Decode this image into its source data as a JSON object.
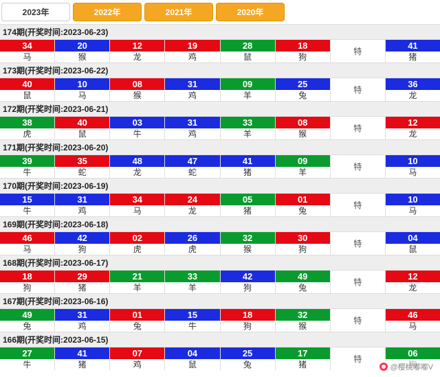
{
  "colors": {
    "red": "#e50914",
    "blue": "#1a2be0",
    "green": "#0a9b2e",
    "orange": "#f5a623"
  },
  "tabs": [
    {
      "label": "2023年",
      "active": true
    },
    {
      "label": "2022年",
      "active": false
    },
    {
      "label": "2021年",
      "active": false
    },
    {
      "label": "2020年",
      "active": false
    }
  ],
  "te_label": "特",
  "watermark": "@樱桃嘟嘟V",
  "periods": [
    {
      "period": "174",
      "date": "2023-06-23",
      "balls": [
        {
          "n": "34",
          "z": "马",
          "c": "red"
        },
        {
          "n": "20",
          "z": "猴",
          "c": "blue"
        },
        {
          "n": "12",
          "z": "龙",
          "c": "red"
        },
        {
          "n": "19",
          "z": "鸡",
          "c": "red"
        },
        {
          "n": "28",
          "z": "鼠",
          "c": "green"
        },
        {
          "n": "18",
          "z": "狗",
          "c": "red"
        }
      ],
      "special": {
        "n": "41",
        "z": "猪",
        "c": "blue"
      }
    },
    {
      "period": "173",
      "date": "2023-06-22",
      "balls": [
        {
          "n": "40",
          "z": "鼠",
          "c": "red"
        },
        {
          "n": "10",
          "z": "马",
          "c": "blue"
        },
        {
          "n": "08",
          "z": "猴",
          "c": "red"
        },
        {
          "n": "31",
          "z": "鸡",
          "c": "blue"
        },
        {
          "n": "09",
          "z": "羊",
          "c": "green"
        },
        {
          "n": "25",
          "z": "兔",
          "c": "blue"
        }
      ],
      "special": {
        "n": "36",
        "z": "龙",
        "c": "blue"
      }
    },
    {
      "period": "172",
      "date": "2023-06-21",
      "balls": [
        {
          "n": "38",
          "z": "虎",
          "c": "green"
        },
        {
          "n": "40",
          "z": "鼠",
          "c": "red"
        },
        {
          "n": "03",
          "z": "牛",
          "c": "blue"
        },
        {
          "n": "31",
          "z": "鸡",
          "c": "blue"
        },
        {
          "n": "33",
          "z": "羊",
          "c": "green"
        },
        {
          "n": "08",
          "z": "猴",
          "c": "red"
        }
      ],
      "special": {
        "n": "12",
        "z": "龙",
        "c": "red"
      }
    },
    {
      "period": "171",
      "date": "2023-06-20",
      "balls": [
        {
          "n": "39",
          "z": "牛",
          "c": "green"
        },
        {
          "n": "35",
          "z": "蛇",
          "c": "red"
        },
        {
          "n": "48",
          "z": "龙",
          "c": "blue"
        },
        {
          "n": "47",
          "z": "蛇",
          "c": "blue"
        },
        {
          "n": "41",
          "z": "猪",
          "c": "blue"
        },
        {
          "n": "09",
          "z": "羊",
          "c": "green"
        }
      ],
      "special": {
        "n": "10",
        "z": "马",
        "c": "blue"
      }
    },
    {
      "period": "170",
      "date": "2023-06-19",
      "balls": [
        {
          "n": "15",
          "z": "牛",
          "c": "blue"
        },
        {
          "n": "31",
          "z": "鸡",
          "c": "blue"
        },
        {
          "n": "34",
          "z": "马",
          "c": "red"
        },
        {
          "n": "24",
          "z": "龙",
          "c": "red"
        },
        {
          "n": "05",
          "z": "猪",
          "c": "green"
        },
        {
          "n": "01",
          "z": "兔",
          "c": "red"
        }
      ],
      "special": {
        "n": "10",
        "z": "马",
        "c": "blue"
      }
    },
    {
      "period": "169",
      "date": "2023-06-18",
      "balls": [
        {
          "n": "46",
          "z": "马",
          "c": "red"
        },
        {
          "n": "42",
          "z": "狗",
          "c": "blue"
        },
        {
          "n": "02",
          "z": "虎",
          "c": "red"
        },
        {
          "n": "26",
          "z": "虎",
          "c": "blue"
        },
        {
          "n": "32",
          "z": "猴",
          "c": "green"
        },
        {
          "n": "30",
          "z": "狗",
          "c": "red"
        }
      ],
      "special": {
        "n": "04",
        "z": "鼠",
        "c": "blue"
      }
    },
    {
      "period": "168",
      "date": "2023-06-17",
      "balls": [
        {
          "n": "18",
          "z": "狗",
          "c": "red"
        },
        {
          "n": "29",
          "z": "猪",
          "c": "red"
        },
        {
          "n": "21",
          "z": "羊",
          "c": "green"
        },
        {
          "n": "33",
          "z": "羊",
          "c": "green"
        },
        {
          "n": "42",
          "z": "狗",
          "c": "blue"
        },
        {
          "n": "49",
          "z": "兔",
          "c": "green"
        }
      ],
      "special": {
        "n": "12",
        "z": "龙",
        "c": "red"
      }
    },
    {
      "period": "167",
      "date": "2023-06-16",
      "balls": [
        {
          "n": "49",
          "z": "兔",
          "c": "green"
        },
        {
          "n": "31",
          "z": "鸡",
          "c": "blue"
        },
        {
          "n": "01",
          "z": "兔",
          "c": "red"
        },
        {
          "n": "15",
          "z": "牛",
          "c": "blue"
        },
        {
          "n": "18",
          "z": "狗",
          "c": "red"
        },
        {
          "n": "32",
          "z": "猴",
          "c": "green"
        }
      ],
      "special": {
        "n": "46",
        "z": "马",
        "c": "red"
      }
    },
    {
      "period": "166",
      "date": "2023-06-15",
      "balls": [
        {
          "n": "27",
          "z": "牛",
          "c": "green"
        },
        {
          "n": "41",
          "z": "猪",
          "c": "blue"
        },
        {
          "n": "07",
          "z": "鸡",
          "c": "red"
        },
        {
          "n": "04",
          "z": "鼠",
          "c": "blue"
        },
        {
          "n": "25",
          "z": "兔",
          "c": "blue"
        },
        {
          "n": "17",
          "z": "猪",
          "c": "green"
        }
      ],
      "special": {
        "n": "06",
        "z": "狗",
        "c": "green"
      }
    }
  ]
}
